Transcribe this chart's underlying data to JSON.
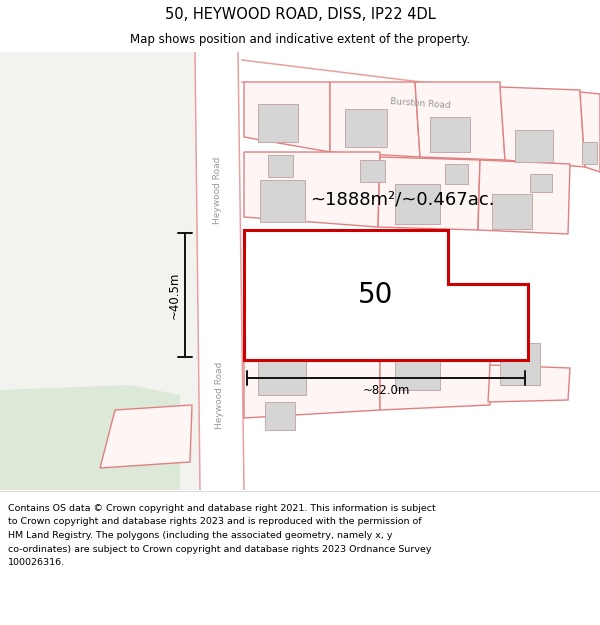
{
  "title": "50, HEYWOOD ROAD, DISS, IP22 4DL",
  "subtitle": "Map shows position and indicative extent of the property.",
  "footer_lines": [
    "Contains OS data © Crown copyright and database right 2021. This information is subject",
    "to Crown copyright and database rights 2023 and is reproduced with the permission of",
    "HM Land Registry. The polygons (including the associated geometry, namely x, y",
    "co-ordinates) are subject to Crown copyright and database rights 2023 Ordnance Survey",
    "100026316."
  ],
  "map_bg": "#f7f7f4",
  "left_bg": "#f2f2ef",
  "green_bg": "#dce8d8",
  "road_fill": "#ffffff",
  "road_stroke": "#e8a0a0",
  "parcel_fill": "#fef5f5",
  "parcel_stroke": "#e08080",
  "building_fill": "#d5d5d5",
  "building_stroke": "#c8a8a8",
  "highlight_stroke": "#cc0000",
  "highlight_fill": "#ffffff",
  "dim_color": "#111111",
  "label_color": "#999999",
  "area_text": "~1888m²/~0.467ac.",
  "width_text": "~82.0m",
  "height_text": "~40.5m",
  "number_text": "50",
  "road_label": "Heywood Road",
  "road_label2": "Heywood Road",
  "burston_label": "Burston Road",
  "title_fontsize": 10.5,
  "subtitle_fontsize": 8.5,
  "footer_fontsize": 6.8,
  "area_fontsize": 13,
  "number_fontsize": 20,
  "dim_fontsize": 8.5,
  "road_label_fontsize": 6.5
}
